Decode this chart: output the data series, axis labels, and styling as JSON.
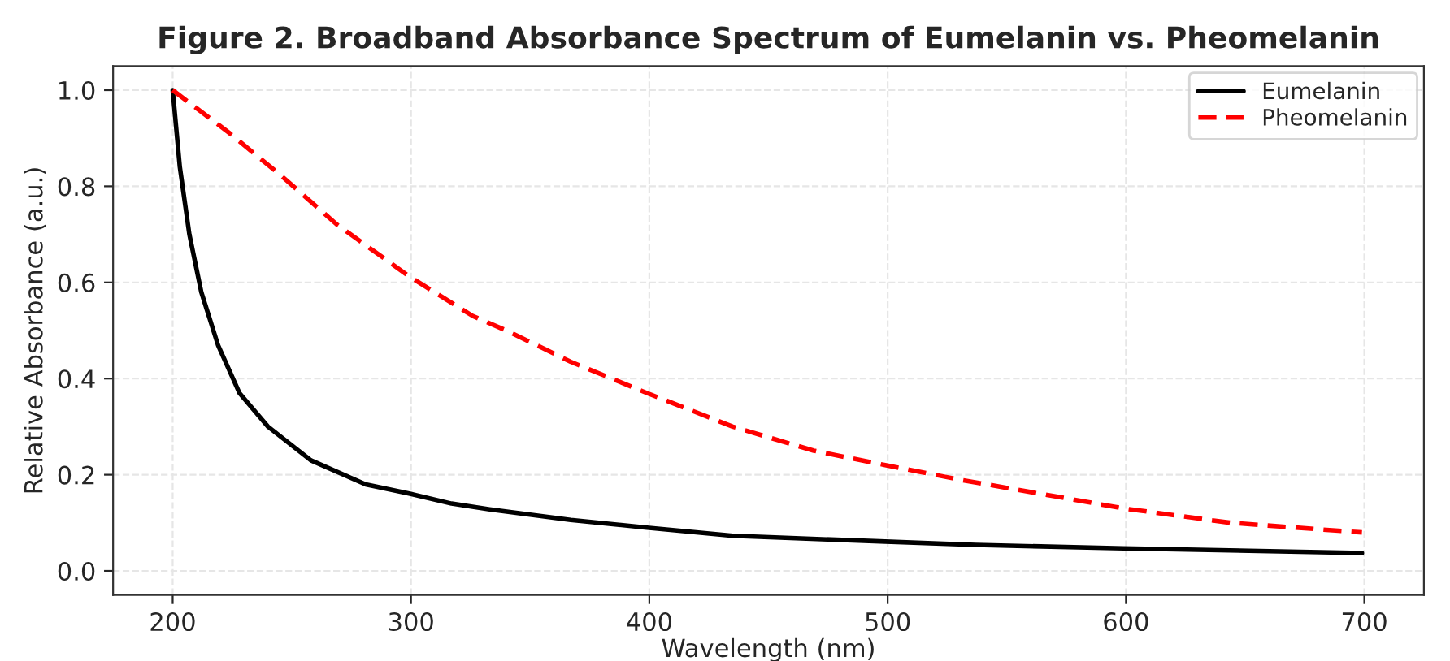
{
  "chart_data": {
    "type": "line",
    "title": "Figure 2. Broadband Absorbance Spectrum of Eumelanin vs. Pheomelanin",
    "xlabel": "Wavelength (nm)",
    "ylabel": "Relative Absorbance (a.u.)",
    "xlim": [
      175,
      725
    ],
    "xticks": [
      200,
      300,
      400,
      500,
      600,
      700
    ],
    "ylim": [
      -0.05,
      1.05
    ],
    "yticks": [
      {
        "value": 0,
        "label": "0.0"
      },
      {
        "value": 0.2,
        "label": "0.2"
      },
      {
        "value": 0.4,
        "label": "0.4"
      },
      {
        "value": 0.6,
        "label": "0.6"
      },
      {
        "value": 0.8,
        "label": "0.8"
      },
      {
        "value": 1,
        "label": "1.0"
      }
    ],
    "grid": true,
    "legend": "top right",
    "marker": "none",
    "series": [
      {
        "name": "Eumelanin",
        "color": "#000000",
        "line_style": "solid",
        "x": [
          200,
          203,
          207,
          212,
          219,
          228,
          240,
          258,
          281,
          300,
          317,
          333,
          367,
          399,
          435,
          499,
          537,
          599,
          699
        ],
        "values": [
          1.0,
          0.84,
          0.7,
          0.58,
          0.47,
          0.37,
          0.3,
          0.23,
          0.18,
          0.16,
          0.14,
          0.128,
          0.106,
          0.09,
          0.073,
          0.061,
          0.054,
          0.047,
          0.037
        ]
      },
      {
        "name": "Pheomelanin",
        "color": "#ff0000",
        "line_style": "dashed",
        "x": [
          200,
          224,
          246,
          269,
          300,
          326,
          340,
          367,
          399,
          435,
          469,
          499,
          530,
          599,
          644,
          699
        ],
        "values": [
          1.0,
          0.91,
          0.82,
          0.72,
          0.61,
          0.53,
          0.5,
          0.435,
          0.37,
          0.3,
          0.25,
          0.22,
          0.19,
          0.13,
          0.1,
          0.08
        ]
      }
    ]
  }
}
